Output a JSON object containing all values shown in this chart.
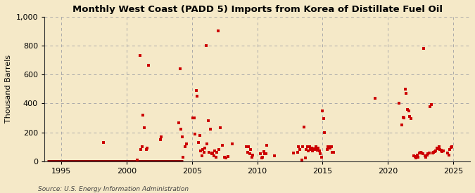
{
  "title": "Monthly West Coast (PADD 5) Imports from Korea of Distillate Fuel Oil",
  "ylabel": "Thousand Barrels",
  "source": "Source: U.S. Energy Information Administration",
  "background_color": "#f5e9c8",
  "plot_bg_color": "#f5e9c8",
  "marker_color": "#cc0000",
  "zero_line_color": "#8b0000",
  "marker_size": 3.5,
  "ylim": [
    0,
    1000
  ],
  "yticks": [
    0,
    200,
    400,
    600,
    800,
    1000
  ],
  "xlim_start": 1993.7,
  "xlim_end": 2026.3,
  "xticks": [
    1995,
    2000,
    2005,
    2010,
    2015,
    2020,
    2025
  ],
  "zero_line_start": 1993.9,
  "zero_line_end": 2004.3,
  "data": [
    [
      1998.25,
      130
    ],
    [
      2000.833,
      10
    ],
    [
      2001.0,
      730
    ],
    [
      2001.083,
      80
    ],
    [
      2001.167,
      100
    ],
    [
      2001.25,
      320
    ],
    [
      2001.333,
      230
    ],
    [
      2001.5,
      80
    ],
    [
      2001.583,
      90
    ],
    [
      2001.667,
      665
    ],
    [
      2002.583,
      150
    ],
    [
      2002.667,
      170
    ],
    [
      2004.0,
      265
    ],
    [
      2004.083,
      640
    ],
    [
      2004.167,
      220
    ],
    [
      2004.25,
      170
    ],
    [
      2004.333,
      30
    ],
    [
      2004.5,
      100
    ],
    [
      2004.583,
      120
    ],
    [
      2005.083,
      300
    ],
    [
      2005.167,
      300
    ],
    [
      2005.25,
      190
    ],
    [
      2005.333,
      490
    ],
    [
      2005.417,
      450
    ],
    [
      2005.5,
      130
    ],
    [
      2005.583,
      180
    ],
    [
      2005.667,
      70
    ],
    [
      2005.75,
      40
    ],
    [
      2005.833,
      80
    ],
    [
      2005.917,
      60
    ],
    [
      2006.0,
      90
    ],
    [
      2006.083,
      800
    ],
    [
      2006.167,
      120
    ],
    [
      2006.25,
      280
    ],
    [
      2006.333,
      60
    ],
    [
      2006.417,
      220
    ],
    [
      2006.5,
      50
    ],
    [
      2006.583,
      55
    ],
    [
      2006.667,
      40
    ],
    [
      2006.75,
      70
    ],
    [
      2006.833,
      30
    ],
    [
      2006.917,
      60
    ],
    [
      2007.0,
      900
    ],
    [
      2007.083,
      80
    ],
    [
      2007.167,
      230
    ],
    [
      2007.333,
      110
    ],
    [
      2007.5,
      30
    ],
    [
      2007.583,
      25
    ],
    [
      2007.75,
      35
    ],
    [
      2008.083,
      120
    ],
    [
      2009.167,
      100
    ],
    [
      2009.25,
      60
    ],
    [
      2009.333,
      100
    ],
    [
      2009.417,
      50
    ],
    [
      2009.5,
      80
    ],
    [
      2009.583,
      30
    ],
    [
      2009.667,
      45
    ],
    [
      2010.25,
      50
    ],
    [
      2010.333,
      25
    ],
    [
      2010.417,
      30
    ],
    [
      2010.5,
      65
    ],
    [
      2010.583,
      50
    ],
    [
      2010.667,
      50
    ],
    [
      2010.75,
      110
    ],
    [
      2011.333,
      40
    ],
    [
      2012.75,
      55
    ],
    [
      2013.083,
      60
    ],
    [
      2013.167,
      100
    ],
    [
      2013.25,
      80
    ],
    [
      2013.417,
      10
    ],
    [
      2013.5,
      100
    ],
    [
      2013.583,
      235
    ],
    [
      2013.667,
      25
    ],
    [
      2013.75,
      80
    ],
    [
      2013.833,
      100
    ],
    [
      2013.917,
      70
    ],
    [
      2014.0,
      100
    ],
    [
      2014.083,
      80
    ],
    [
      2014.167,
      90
    ],
    [
      2014.25,
      70
    ],
    [
      2014.333,
      85
    ],
    [
      2014.417,
      80
    ],
    [
      2014.5,
      100
    ],
    [
      2014.583,
      75
    ],
    [
      2014.667,
      90
    ],
    [
      2014.75,
      70
    ],
    [
      2014.833,
      50
    ],
    [
      2014.917,
      30
    ],
    [
      2015.0,
      350
    ],
    [
      2015.083,
      295
    ],
    [
      2015.167,
      200
    ],
    [
      2015.333,
      80
    ],
    [
      2015.417,
      100
    ],
    [
      2015.5,
      100
    ],
    [
      2015.583,
      90
    ],
    [
      2015.667,
      100
    ],
    [
      2015.75,
      60
    ],
    [
      2015.833,
      60
    ],
    [
      2019.0,
      435
    ],
    [
      2020.833,
      400
    ],
    [
      2021.083,
      250
    ],
    [
      2021.167,
      305
    ],
    [
      2021.25,
      300
    ],
    [
      2021.333,
      500
    ],
    [
      2021.417,
      470
    ],
    [
      2021.5,
      360
    ],
    [
      2021.583,
      350
    ],
    [
      2021.667,
      310
    ],
    [
      2021.75,
      295
    ],
    [
      2022.0,
      40
    ],
    [
      2022.083,
      35
    ],
    [
      2022.167,
      25
    ],
    [
      2022.25,
      45
    ],
    [
      2022.333,
      30
    ],
    [
      2022.417,
      55
    ],
    [
      2022.5,
      60
    ],
    [
      2022.583,
      55
    ],
    [
      2022.667,
      50
    ],
    [
      2022.75,
      780
    ],
    [
      2022.833,
      40
    ],
    [
      2022.917,
      30
    ],
    [
      2023.0,
      45
    ],
    [
      2023.083,
      50
    ],
    [
      2023.167,
      55
    ],
    [
      2023.25,
      380
    ],
    [
      2023.333,
      390
    ],
    [
      2023.417,
      55
    ],
    [
      2023.5,
      60
    ],
    [
      2023.583,
      65
    ],
    [
      2023.667,
      70
    ],
    [
      2023.75,
      90
    ],
    [
      2023.833,
      85
    ],
    [
      2023.917,
      100
    ],
    [
      2024.0,
      80
    ],
    [
      2024.083,
      75
    ],
    [
      2024.167,
      65
    ],
    [
      2024.25,
      70
    ],
    [
      2024.583,
      55
    ],
    [
      2024.667,
      45
    ],
    [
      2024.75,
      80
    ],
    [
      2024.833,
      95
    ],
    [
      2024.917,
      100
    ]
  ]
}
